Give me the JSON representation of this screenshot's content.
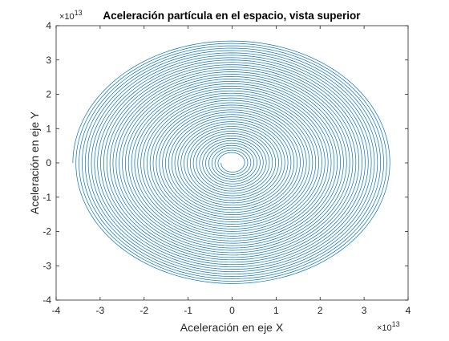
{
  "chart_data": {
    "type": "line",
    "title": "Aceleración partícula en el espacio, vista superior",
    "xlabel": "Aceleración en eje X",
    "ylabel": "Aceleración en eje Y",
    "xlim": [
      -4,
      4
    ],
    "ylim": [
      -4,
      4
    ],
    "xticks": [
      -4,
      -3,
      -2,
      -1,
      0,
      1,
      2,
      3,
      4
    ],
    "yticks": [
      -4,
      -3,
      -2,
      -1,
      0,
      1,
      2,
      3,
      4
    ],
    "x_multiplier": {
      "base": "×10",
      "exp": "13"
    },
    "y_multiplier": {
      "base": "×10",
      "exp": "13"
    },
    "grid": false,
    "series": [
      {
        "color": "#0072BD",
        "shape": "outward spiral",
        "inner_radius": 0.25,
        "outer_radius_x": 3.62,
        "outer_radius_y": 3.57,
        "turns": 48
      }
    ]
  }
}
